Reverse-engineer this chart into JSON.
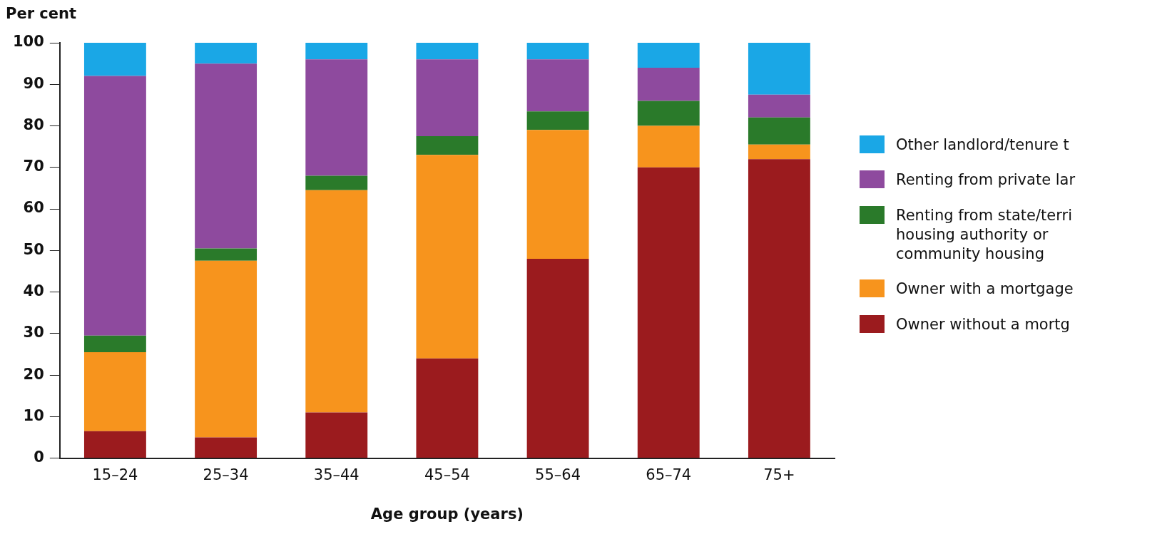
{
  "chart_data": {
    "type": "bar",
    "stacked": true,
    "ylabel": "Per cent",
    "xlabel": "Age group (years)",
    "categories": [
      "15–24",
      "25–34",
      "35–44",
      "45–54",
      "55–64",
      "65–74",
      "75+"
    ],
    "ylim": [
      0,
      100
    ],
    "yticks": [
      0,
      10,
      20,
      30,
      40,
      50,
      60,
      70,
      80,
      90,
      100
    ],
    "grid": false,
    "legend": "right",
    "series": [
      {
        "name": "Owner without a mortg",
        "color": "#9b1b1e",
        "values": [
          6.5,
          5,
          11,
          24,
          48,
          70,
          72
        ]
      },
      {
        "name": "Owner with a mortgage",
        "color": "#f7941d",
        "values": [
          19,
          42.5,
          53.5,
          49,
          31,
          10,
          3.5
        ]
      },
      {
        "name": "Renting from state/terri\nhousing authority or\ncommunity housing",
        "color": "#2a7a2a",
        "values": [
          4,
          3,
          3.5,
          4.5,
          4.5,
          6,
          6.5
        ]
      },
      {
        "name": "Renting from private lar",
        "color": "#8e4a9e",
        "values": [
          62.5,
          44.5,
          28,
          18.5,
          12.5,
          8,
          5.5
        ]
      },
      {
        "name": "Other landlord/tenure t",
        "color": "#1aa7e6",
        "values": [
          8,
          5,
          4,
          4,
          4,
          6,
          12.5
        ]
      }
    ]
  }
}
